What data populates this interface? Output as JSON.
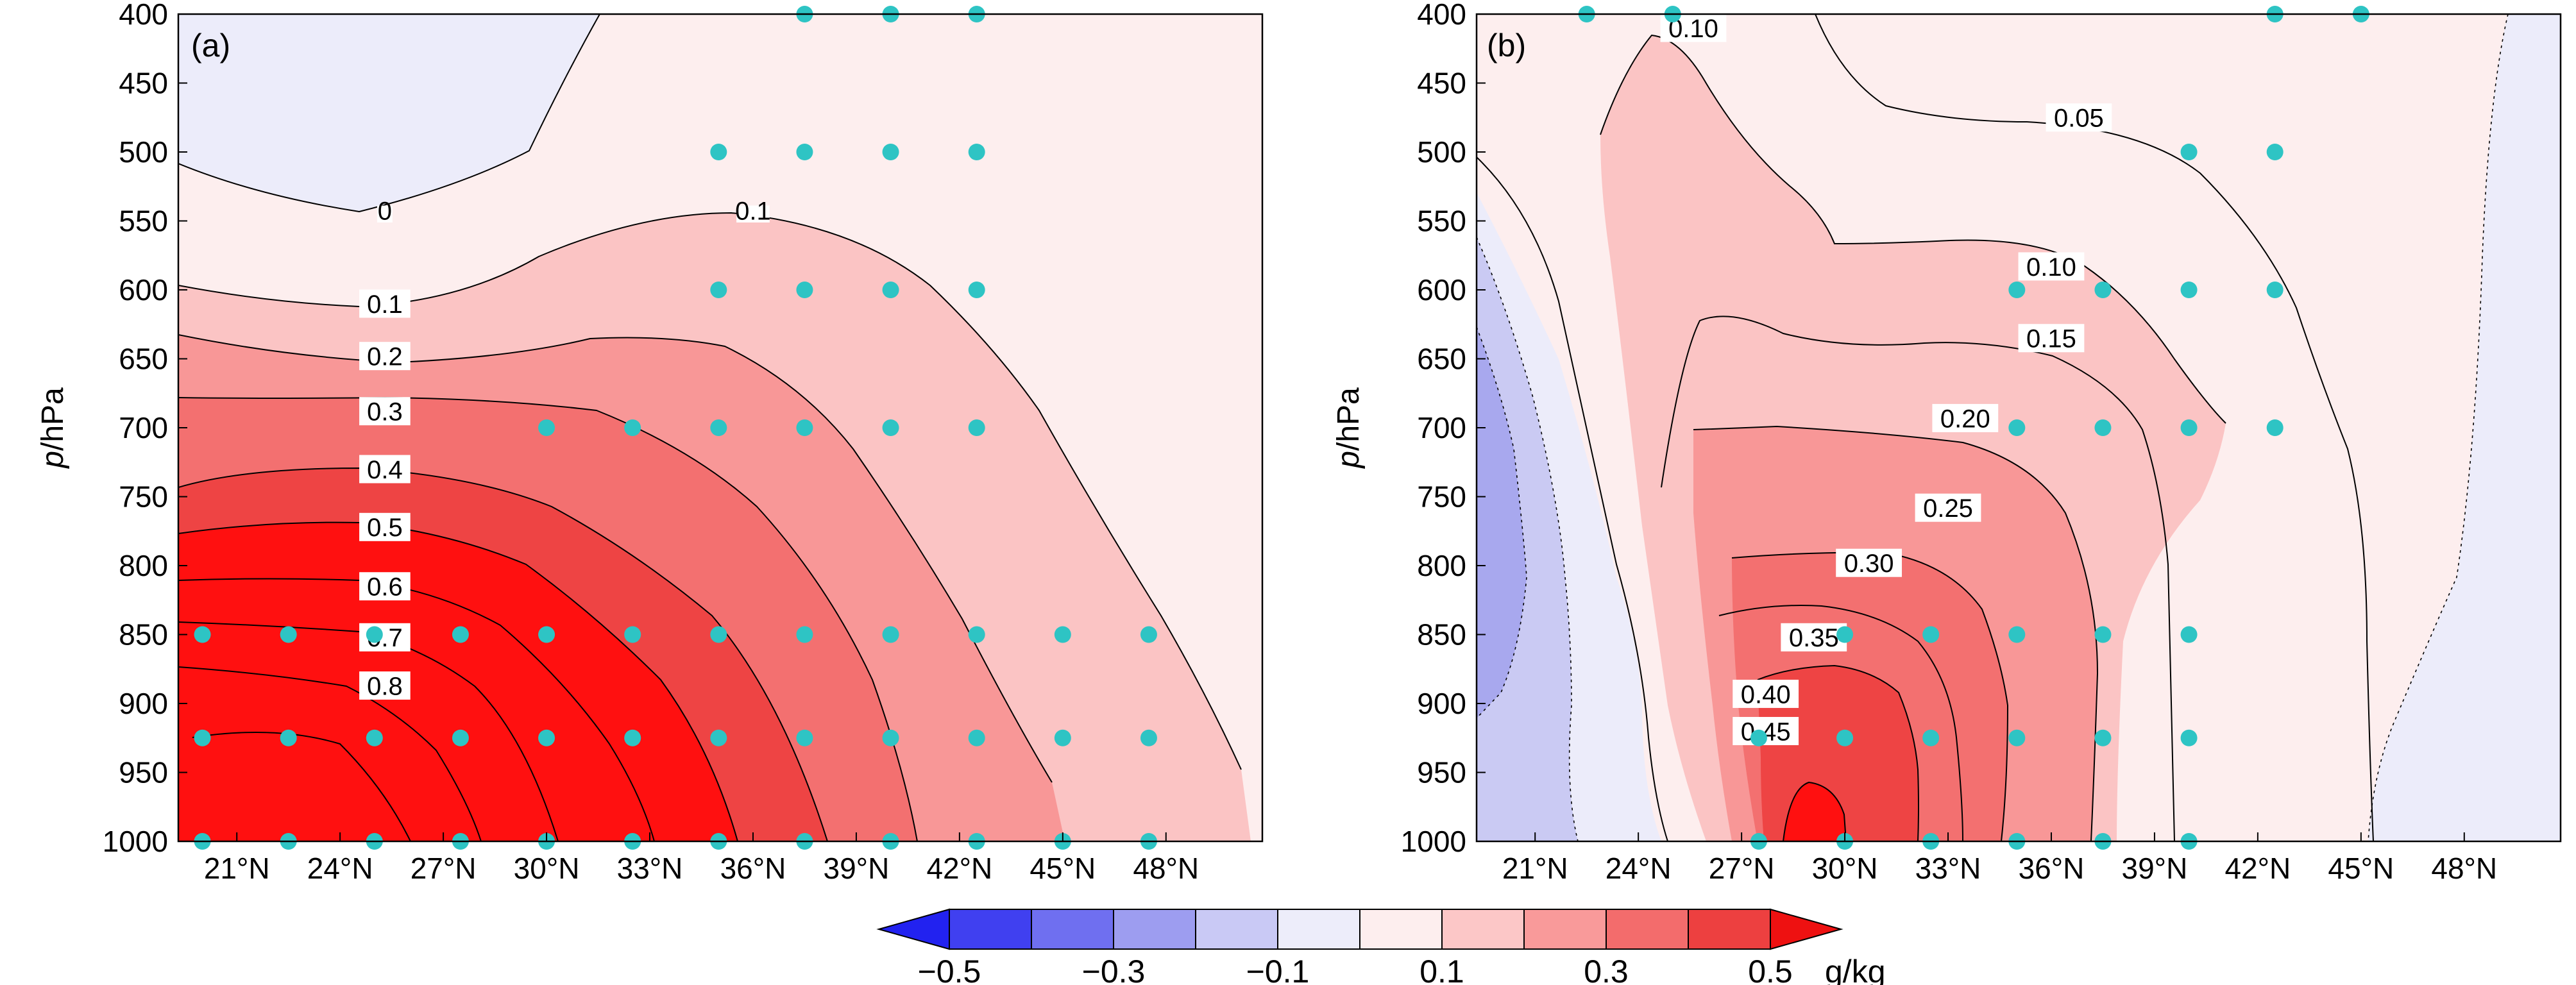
{
  "chart_data": [
    {
      "type": "contour",
      "panel_label": "(a)",
      "ylabel": "p/hPa",
      "y_axis_ticks": [
        400,
        450,
        500,
        550,
        600,
        650,
        700,
        750,
        800,
        850,
        900,
        950,
        1000
      ],
      "y_range": [
        400,
        1000
      ],
      "x_range": [
        19.3,
        50.8
      ],
      "x_ticks": [
        21,
        24,
        27,
        30,
        33,
        36,
        39,
        42,
        45,
        48
      ],
      "x_tick_labels": [
        "21°N",
        "24°N",
        "27°N",
        "30°N",
        "33°N",
        "36°N",
        "39°N",
        "42°N",
        "45°N",
        "48°N"
      ],
      "contour_labels": [
        {
          "text": "0",
          "lat": 25.3,
          "p": 545
        },
        {
          "text": "0.1",
          "lat": 36.0,
          "p": 545
        },
        {
          "text": "0.1",
          "lat": 25.3,
          "p": 610
        },
        {
          "text": "0.2",
          "lat": 25.3,
          "p": 648
        },
        {
          "text": "0.3",
          "lat": 25.3,
          "p": 688
        },
        {
          "text": "0.4",
          "lat": 25.3,
          "p": 730
        },
        {
          "text": "0.5",
          "lat": 25.3,
          "p": 772
        },
        {
          "text": "0.6",
          "lat": 25.3,
          "p": 815
        },
        {
          "text": "0.7",
          "lat": 25.3,
          "p": 852
        },
        {
          "text": "0.8",
          "lat": 25.3,
          "p": 887
        }
      ],
      "significance_points": [
        [
          37.5,
          400
        ],
        [
          40,
          400
        ],
        [
          42.5,
          400
        ],
        [
          35,
          500
        ],
        [
          37.5,
          500
        ],
        [
          40,
          500
        ],
        [
          42.5,
          500
        ],
        [
          35,
          600
        ],
        [
          37.5,
          600
        ],
        [
          40,
          600
        ],
        [
          42.5,
          600
        ],
        [
          30,
          700
        ],
        [
          32.5,
          700
        ],
        [
          35,
          700
        ],
        [
          37.5,
          700
        ],
        [
          40,
          700
        ],
        [
          42.5,
          700
        ],
        [
          20,
          850
        ],
        [
          22.5,
          850
        ],
        [
          25,
          850
        ],
        [
          27.5,
          850
        ],
        [
          30,
          850
        ],
        [
          32.5,
          850
        ],
        [
          35,
          850
        ],
        [
          37.5,
          850
        ],
        [
          40,
          850
        ],
        [
          42.5,
          850
        ],
        [
          45,
          850
        ],
        [
          47.5,
          850
        ],
        [
          20,
          925
        ],
        [
          22.5,
          925
        ],
        [
          25,
          925
        ],
        [
          27.5,
          925
        ],
        [
          30,
          925
        ],
        [
          32.5,
          925
        ],
        [
          35,
          925
        ],
        [
          37.5,
          925
        ],
        [
          40,
          925
        ],
        [
          42.5,
          925
        ],
        [
          45,
          925
        ],
        [
          47.5,
          925
        ],
        [
          20,
          1000
        ],
        [
          22.5,
          1000
        ],
        [
          25,
          1000
        ],
        [
          27.5,
          1000
        ],
        [
          30,
          1000
        ],
        [
          32.5,
          1000
        ],
        [
          35,
          1000
        ],
        [
          37.5,
          1000
        ],
        [
          40,
          1000
        ],
        [
          42.5,
          1000
        ],
        [
          45,
          1000
        ],
        [
          47.5,
          1000
        ]
      ]
    },
    {
      "type": "contour",
      "panel_label": "(b)",
      "ylabel": "p/hPa",
      "y_axis_ticks": [
        400,
        450,
        500,
        550,
        600,
        650,
        700,
        750,
        800,
        850,
        900,
        950,
        1000
      ],
      "y_range": [
        400,
        1000
      ],
      "x_range": [
        19.3,
        50.8
      ],
      "x_ticks": [
        21,
        24,
        27,
        30,
        33,
        36,
        39,
        42,
        45,
        48
      ],
      "x_tick_labels": [
        "21°N",
        "24°N",
        "27°N",
        "30°N",
        "33°N",
        "36°N",
        "39°N",
        "42°N",
        "45°N",
        "48°N"
      ],
      "contour_labels": [
        {
          "text": "0.10",
          "lat": 25.6,
          "p": 410
        },
        {
          "text": "0.05",
          "lat": 36.8,
          "p": 475
        },
        {
          "text": "0.10",
          "lat": 36.0,
          "p": 583
        },
        {
          "text": "0.15",
          "lat": 36.0,
          "p": 635
        },
        {
          "text": "0.20",
          "lat": 33.5,
          "p": 693
        },
        {
          "text": "0.25",
          "lat": 33.0,
          "p": 758
        },
        {
          "text": "0.30",
          "lat": 30.7,
          "p": 798
        },
        {
          "text": "0.35",
          "lat": 29.1,
          "p": 852
        },
        {
          "text": "0.40",
          "lat": 27.7,
          "p": 893
        },
        {
          "text": "0.45",
          "lat": 27.7,
          "p": 920
        }
      ],
      "significance_points": [
        [
          22.5,
          400
        ],
        [
          25,
          400
        ],
        [
          42.5,
          400
        ],
        [
          45,
          400
        ],
        [
          40,
          500
        ],
        [
          42.5,
          500
        ],
        [
          35,
          600
        ],
        [
          37.5,
          600
        ],
        [
          40,
          600
        ],
        [
          42.5,
          600
        ],
        [
          35,
          700
        ],
        [
          37.5,
          700
        ],
        [
          40,
          700
        ],
        [
          42.5,
          700
        ],
        [
          30,
          850
        ],
        [
          32.5,
          850
        ],
        [
          35,
          850
        ],
        [
          37.5,
          850
        ],
        [
          40,
          850
        ],
        [
          27.5,
          925
        ],
        [
          30,
          925
        ],
        [
          32.5,
          925
        ],
        [
          35,
          925
        ],
        [
          37.5,
          925
        ],
        [
          40,
          925
        ],
        [
          27.5,
          1000
        ],
        [
          30,
          1000
        ],
        [
          32.5,
          1000
        ],
        [
          35,
          1000
        ],
        [
          37.5,
          1000
        ],
        [
          40,
          1000
        ]
      ]
    }
  ],
  "colorbar": {
    "tick_labels": [
      "−0.5",
      "−0.3",
      "−0.1",
      "0.1",
      "0.3",
      "0.5"
    ],
    "unit": "g/kg",
    "segments": [
      "#4040f0",
      "#6f6ff0",
      "#9d9df0",
      "#c9c9f5",
      "#ededfa",
      "#fdeeee",
      "#fcc7c7",
      "#f99a9a",
      "#f36c6c",
      "#ed4040"
    ],
    "extend_low": "#2222f0",
    "extend_high": "#ee1111"
  },
  "colors": {
    "point": "#2ec4c4",
    "level_light_blue": "#ececfa",
    "level_blue": "#cacaf3",
    "level_mid_blue": "#a8a8ee",
    "level_white": "#ffffff",
    "level_pink": "#fdeeee",
    "level_light_red": "#fbc4c4",
    "level_mid_red": "#f89797",
    "level_red": "#f37070",
    "level_dark_red": "#ee4444",
    "level_max": "#ff1010"
  }
}
